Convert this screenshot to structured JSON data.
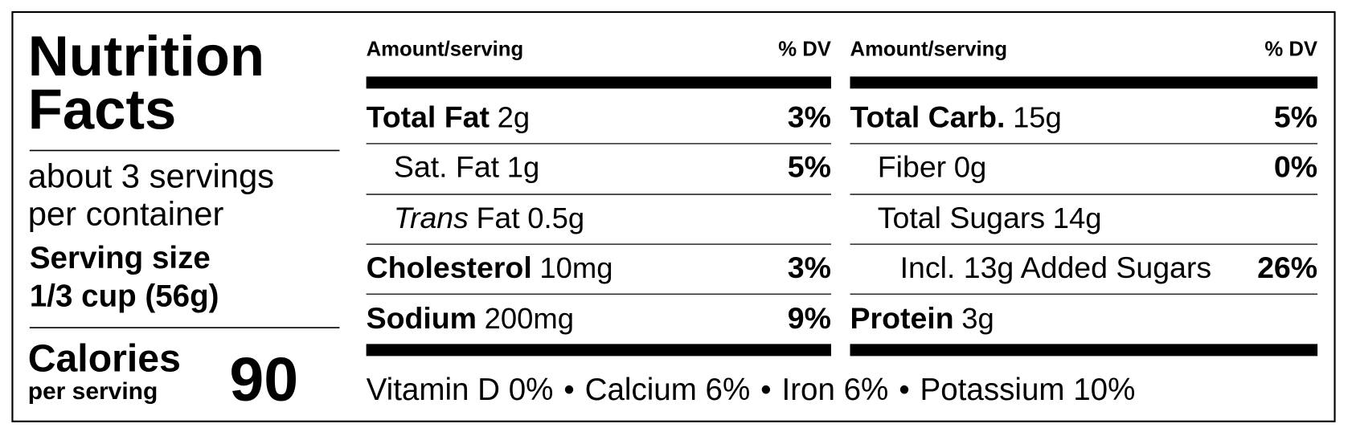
{
  "title_lines": [
    "Nutrition",
    "Facts"
  ],
  "servings": [
    "about 3 servings",
    "per container"
  ],
  "serving_size": [
    "Serving size",
    "1/3 cup (56g)"
  ],
  "calories": {
    "label": "Calories",
    "sublabel": "per serving",
    "value": "90"
  },
  "columns": [
    {
      "header": {
        "amount": "Amount/serving",
        "dv": "% DV"
      },
      "rows": [
        {
          "name": "Total Fat",
          "amount": "2g",
          "dv": "3%",
          "level": 0
        },
        {
          "name": "Sat. Fat",
          "amount": "1g",
          "dv": "5%",
          "level": 1
        },
        {
          "name_italic": "Trans",
          "name": "Fat",
          "amount": "0.5g",
          "level": 1
        },
        {
          "name": "Cholesterol",
          "amount": "10mg",
          "dv": "3%",
          "level": 0
        },
        {
          "name": "Sodium",
          "amount": "200mg",
          "dv": "9%",
          "level": 0
        }
      ]
    },
    {
      "header": {
        "amount": "Amount/serving",
        "dv": "% DV"
      },
      "rows": [
        {
          "name": "Total Carb.",
          "amount": "15g",
          "dv": "5%",
          "level": 0
        },
        {
          "name": "Fiber",
          "amount": "0g",
          "dv": "0%",
          "level": 1
        },
        {
          "name": "Total Sugars",
          "amount": "14g",
          "level": 1
        },
        {
          "name": "Incl. 13g Added Sugars",
          "dv": "26%",
          "level": 2
        },
        {
          "name": "Protein",
          "amount": "3g",
          "level": 0
        }
      ]
    }
  ],
  "vitamins": [
    "Vitamin D 0%",
    "Calcium 6%",
    "Iron 6%",
    "Potassium 10%"
  ],
  "separator": "•"
}
